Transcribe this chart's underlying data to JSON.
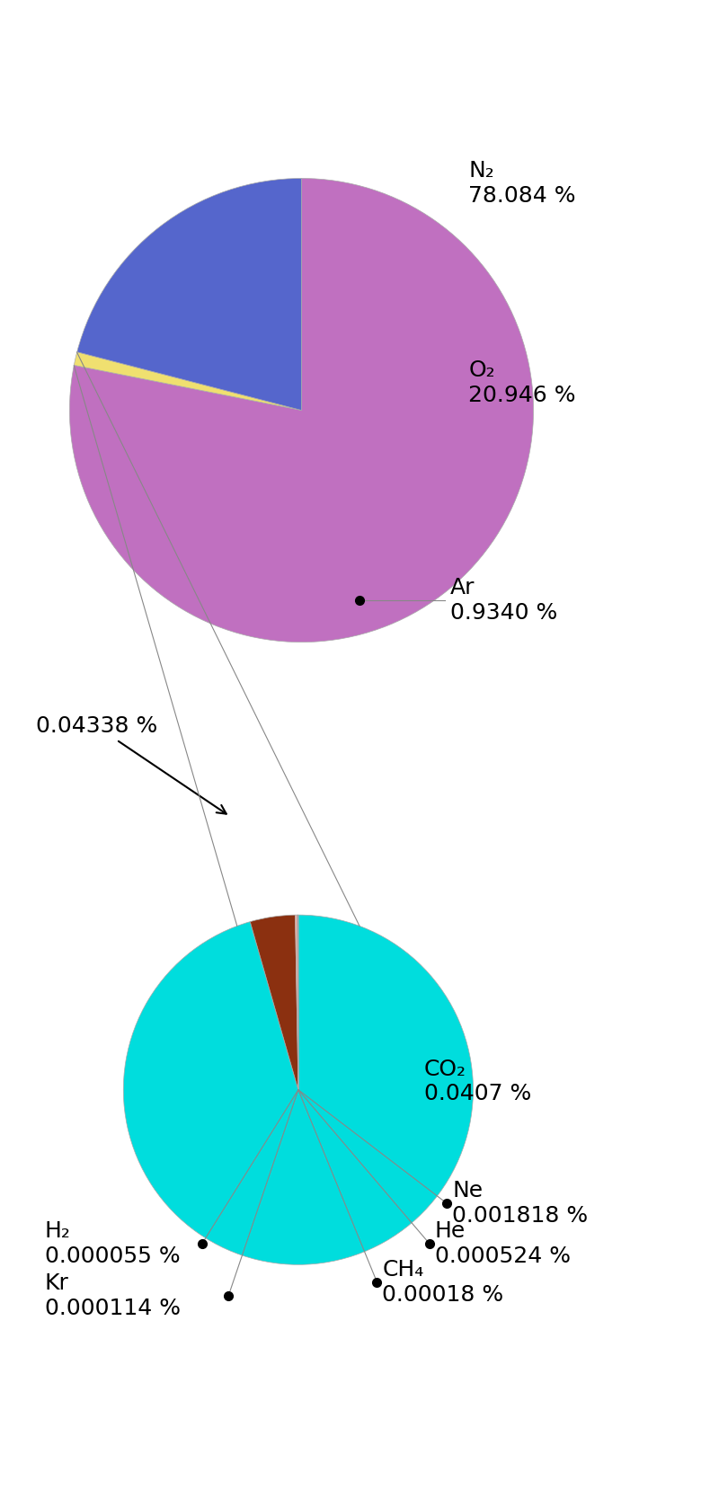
{
  "pie1_values": [
    78.084,
    0.934,
    20.946
  ],
  "pie1_colors": [
    "#c070c0",
    "#f0e070",
    "#5566cc"
  ],
  "pie1_startangle": 90,
  "pie2_values": [
    0.934,
    0.0407,
    0.001818,
    0.000524,
    0.00018,
    5.5e-05,
    0.000114
  ],
  "pie2_colors": [
    "#00dddd",
    "#8b3010",
    "#ffb0a0",
    "#4040bb",
    "#00dddd",
    "#00dddd",
    "#00dddd"
  ],
  "pie2_startangle": 90,
  "background_color": "#ffffff",
  "line_color": "#888888",
  "dot_color": "#000000",
  "arrow_color": "#000000",
  "text_fontsize": 18,
  "label_fontsize": 18,
  "n2_label": "N₂\n78.084 %",
  "o2_label": "O₂\n20.946 %",
  "ar_label": "Ar\n0.9340 %",
  "co2_label": "CO₂\n0.0407 %",
  "ne_label": "Ne\n0.001818 %",
  "he_label": "He\n0.000524 %",
  "ch4_label": "CH₄\n0.00018 %",
  "h2_label": "H₂\n0.000055 %",
  "kr_label": "Kr\n0.000114 %",
  "expand_label": "0.04338 %"
}
